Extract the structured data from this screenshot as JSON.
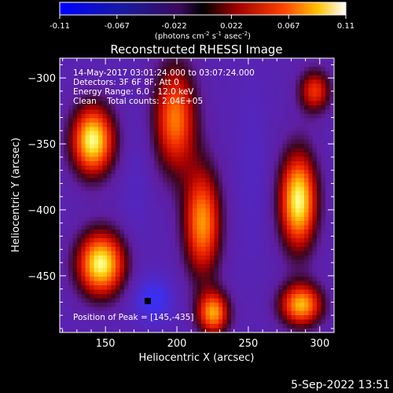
{
  "colorbar": {
    "ticks": [
      "-0.11",
      "-0.067",
      "-0.022",
      "0.022",
      "0.067",
      "0.11"
    ],
    "unit_prefix": "(photons cm",
    "unit_exp1": "-2",
    "unit_mid": " s",
    "unit_exp2": "-1",
    "unit_mid2": " asec",
    "unit_exp3": "-2",
    "unit_suffix": ")"
  },
  "plot": {
    "title": "Reconstructed RHESSI Image",
    "xlabel": "Heliocentric X (arcsec)",
    "ylabel": "Heliocentric Y (arcsec)",
    "x_ticks": [
      "150",
      "200",
      "250",
      "300"
    ],
    "y_ticks": [
      "-300",
      "-350",
      "-400",
      "-450"
    ],
    "x_range": [
      118,
      310
    ],
    "y_range": [
      -493,
      -285
    ]
  },
  "annotations": {
    "time_range": "14-May-2017 03:01:24.000 to 03:07:24.000",
    "detectors": "Detectors: 3F 6F 8F, Att 0",
    "energy": "Energy Range: 6.0 - 12.0 keV",
    "clean": "Clean    Total counts: 2.04E+05",
    "peak": "Position of Peak = [145,-435]"
  },
  "footer": {
    "timestamp": "5-Sep-2022 13:51"
  }
}
